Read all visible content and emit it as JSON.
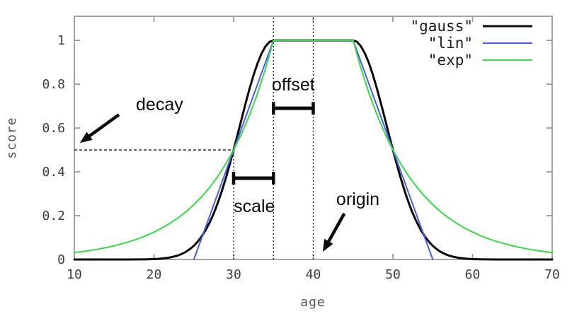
{
  "chart_data": {
    "type": "line",
    "title": "",
    "xlabel": "age",
    "ylabel": "score",
    "xlim": [
      10,
      70
    ],
    "ylim": [
      0,
      1.11
    ],
    "x_ticks": [
      10,
      20,
      30,
      40,
      50,
      60,
      70
    ],
    "y_ticks": [
      0,
      0.2,
      0.4,
      0.6,
      0.8,
      1
    ],
    "grid": false,
    "legend_position": "top-right-inside",
    "decay_parameters": {
      "origin": 40,
      "offset": 5,
      "scale": 5,
      "decay": 0.5
    },
    "series": [
      {
        "id": "gauss",
        "name": "\"gauss\"",
        "color": "#0a0a0a",
        "width": 3,
        "points": [
          [
            10,
            0
          ],
          [
            12,
            0
          ],
          [
            14,
            0
          ],
          [
            15,
            0
          ],
          [
            16,
            0
          ],
          [
            17,
            0.0001
          ],
          [
            18,
            0.0003
          ],
          [
            19,
            0.0008
          ],
          [
            19.5,
            0.0013
          ],
          [
            20,
            0.002
          ],
          [
            20.5,
            0.0029
          ],
          [
            21,
            0.0044
          ],
          [
            21.5,
            0.0064
          ],
          [
            22,
            0.0092
          ],
          [
            22.5,
            0.0131
          ],
          [
            23,
            0.0185
          ],
          [
            23.5,
            0.0256
          ],
          [
            24,
            0.0349
          ],
          [
            24.5,
            0.047
          ],
          [
            25,
            0.0625
          ],
          [
            25.5,
            0.0819
          ],
          [
            26,
            0.1058
          ],
          [
            26.5,
            0.1348
          ],
          [
            27,
            0.1696
          ],
          [
            27.5,
            0.2102
          ],
          [
            28,
            0.257
          ],
          [
            28.5,
            0.3098
          ],
          [
            29,
            0.3687
          ],
          [
            29.5,
            0.4325
          ],
          [
            30,
            0.5
          ],
          [
            30.5,
            0.5705
          ],
          [
            31,
            0.6417
          ],
          [
            31.5,
            0.7121
          ],
          [
            32,
            0.7792
          ],
          [
            32.5,
            0.8409
          ],
          [
            33,
            0.895
          ],
          [
            33.5,
            0.9395
          ],
          [
            34,
            0.9727
          ],
          [
            34.5,
            0.9931
          ],
          [
            35,
            1
          ],
          [
            45,
            1
          ],
          [
            45.5,
            0.9931
          ],
          [
            46,
            0.9727
          ],
          [
            46.5,
            0.9395
          ],
          [
            47,
            0.895
          ],
          [
            47.5,
            0.8409
          ],
          [
            48,
            0.7792
          ],
          [
            48.5,
            0.7121
          ],
          [
            49,
            0.6417
          ],
          [
            49.5,
            0.5705
          ],
          [
            50,
            0.5
          ],
          [
            50.5,
            0.4325
          ],
          [
            51,
            0.3687
          ],
          [
            51.5,
            0.3098
          ],
          [
            52,
            0.257
          ],
          [
            52.5,
            0.2102
          ],
          [
            53,
            0.1696
          ],
          [
            53.5,
            0.1348
          ],
          [
            54,
            0.1058
          ],
          [
            54.5,
            0.0819
          ],
          [
            55,
            0.0625
          ],
          [
            55.5,
            0.047
          ],
          [
            56,
            0.0349
          ],
          [
            56.5,
            0.0256
          ],
          [
            57,
            0.0185
          ],
          [
            57.5,
            0.0131
          ],
          [
            58,
            0.0092
          ],
          [
            58.5,
            0.0064
          ],
          [
            59,
            0.0044
          ],
          [
            59.5,
            0.0029
          ],
          [
            60,
            0.002
          ],
          [
            60.5,
            0.0013
          ],
          [
            61,
            0.0008
          ],
          [
            62,
            0.0003
          ],
          [
            63,
            0.0001
          ],
          [
            64,
            0
          ],
          [
            66,
            0
          ],
          [
            68,
            0
          ],
          [
            70,
            0
          ]
        ]
      },
      {
        "id": "lin",
        "name": "\"lin\"",
        "color": "#4a5ce8",
        "width": 2,
        "points": [
          [
            25,
            0
          ],
          [
            35,
            1
          ],
          [
            45,
            1
          ],
          [
            55,
            0
          ]
        ]
      },
      {
        "id": "exp",
        "name": "\"exp\"",
        "color": "#38d948",
        "width": 2,
        "points": [
          [
            10,
            0.0313
          ],
          [
            11,
            0.0359
          ],
          [
            12,
            0.0412
          ],
          [
            13,
            0.0473
          ],
          [
            14,
            0.0544
          ],
          [
            15,
            0.0625
          ],
          [
            16,
            0.0718
          ],
          [
            17,
            0.0825
          ],
          [
            18,
            0.0947
          ],
          [
            19,
            0.1088
          ],
          [
            20,
            0.125
          ],
          [
            21,
            0.1436
          ],
          [
            22,
            0.1649
          ],
          [
            23,
            0.1895
          ],
          [
            24,
            0.2176
          ],
          [
            25,
            0.25
          ],
          [
            26,
            0.2872
          ],
          [
            27,
            0.3299
          ],
          [
            28,
            0.3789
          ],
          [
            29,
            0.4353
          ],
          [
            30,
            0.5
          ],
          [
            31,
            0.5744
          ],
          [
            32,
            0.6598
          ],
          [
            33,
            0.7579
          ],
          [
            34,
            0.8706
          ],
          [
            35,
            1
          ],
          [
            45,
            1
          ],
          [
            46,
            0.8706
          ],
          [
            47,
            0.7579
          ],
          [
            48,
            0.6598
          ],
          [
            49,
            0.5744
          ],
          [
            50,
            0.5
          ],
          [
            51,
            0.4353
          ],
          [
            52,
            0.3789
          ],
          [
            53,
            0.3299
          ],
          [
            54,
            0.2872
          ],
          [
            55,
            0.25
          ],
          [
            56,
            0.2176
          ],
          [
            57,
            0.1895
          ],
          [
            58,
            0.1649
          ],
          [
            59,
            0.1436
          ],
          [
            60,
            0.125
          ],
          [
            61,
            0.1088
          ],
          [
            62,
            0.0947
          ],
          [
            63,
            0.0825
          ],
          [
            64,
            0.0718
          ],
          [
            65,
            0.0625
          ],
          [
            66,
            0.0544
          ],
          [
            67,
            0.0473
          ],
          [
            68,
            0.0412
          ],
          [
            69,
            0.0359
          ],
          [
            70,
            0.0313
          ]
        ]
      }
    ],
    "guides": [
      {
        "orient": "h",
        "style": "dashed",
        "y": 0.5,
        "x1": 10,
        "x2": 30
      },
      {
        "orient": "v",
        "style": "dotted",
        "x": 30,
        "y1": 0,
        "y2": 0.5
      },
      {
        "orient": "v",
        "style": "dotted",
        "x": 35,
        "y1": 0,
        "y2": 1.11
      },
      {
        "orient": "v",
        "style": "dotted",
        "x": 40,
        "y1": 0,
        "y2": 1.11
      }
    ],
    "range_markers": [
      {
        "label": "offset",
        "x1": 35,
        "x2": 40,
        "y": 0.69,
        "label_x": 37.5,
        "label_y": 0.8
      },
      {
        "label": "scale",
        "x1": 30,
        "x2": 35,
        "y": 0.371,
        "label_x": 32.6,
        "label_y": 0.245
      }
    ],
    "callouts": [
      {
        "label": "decay",
        "label_x": 20.7,
        "label_y": 0.71,
        "arrow_from_x": 15.6,
        "arrow_from_y": 0.661,
        "arrow_to_x": 10.7,
        "arrow_to_y": 0.532
      },
      {
        "label": "origin",
        "label_x": 45.6,
        "label_y": 0.277,
        "arrow_from_x": 43.9,
        "arrow_from_y": 0.21,
        "arrow_to_x": 41.2,
        "arrow_to_y": 0.035
      }
    ]
  }
}
